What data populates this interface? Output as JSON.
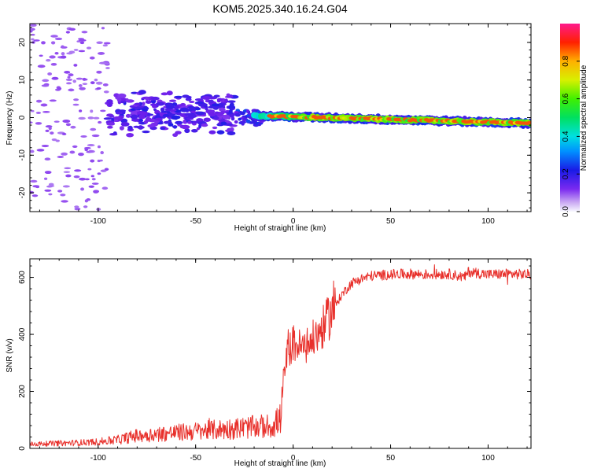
{
  "page_title": "KOM5.2025.340.16.24.G04",
  "colors": {
    "snr_line": "#e8302b",
    "axis": "#000000",
    "background": "#ffffff"
  },
  "chart_data": [
    {
      "type": "heatmap",
      "title": "KOM5.2025.340.16.24.G04",
      "xlabel": "Height of straight line (km)",
      "ylabel": "Frequency (Hz)",
      "xlim": [
        -135,
        122
      ],
      "ylim": [
        -25,
        25
      ],
      "xticks": [
        -100,
        -50,
        0,
        50,
        100
      ],
      "yticks": [
        -20,
        -10,
        0,
        10,
        20
      ],
      "colorbar": {
        "label": "Normalized spectral amplitude",
        "range": [
          0,
          1
        ],
        "ticks": [
          0.0,
          0.2,
          0.4,
          0.6,
          0.8
        ],
        "tick_labels": [
          "0.0",
          "0.2",
          "0.4",
          "0.6",
          "0.8"
        ],
        "colormap": "rainbow (violet to magenta)"
      },
      "features": [
        {
          "name": "noise scatter",
          "x_range": [
            -135,
            -95
          ],
          "freq_range": [
            -25,
            25
          ],
          "amplitude": 0.05
        },
        {
          "name": "onset cluster",
          "x_range": [
            -95,
            -30
          ],
          "freq_range": [
            -5,
            7
          ],
          "amplitude": 0.15
        },
        {
          "name": "carrier ridge",
          "x_range": [
            -20,
            122
          ],
          "freq_center_start": 0.5,
          "freq_center_end": -1.5,
          "amplitude": 0.95
        }
      ]
    },
    {
      "type": "line",
      "title": "",
      "xlabel": "Height of straight line (km)",
      "ylabel": "SNR (v/v)",
      "xlim": [
        -135,
        122
      ],
      "ylim": [
        0,
        665
      ],
      "xticks": [
        -100,
        -50,
        0,
        50,
        100
      ],
      "yticks": [
        0,
        200,
        400,
        600
      ],
      "series": [
        {
          "name": "SNR",
          "x": [
            -135,
            -120,
            -110,
            -100,
            -90,
            -80,
            -70,
            -60,
            -50,
            -40,
            -30,
            -20,
            -10,
            -6,
            -5,
            -3,
            0,
            5,
            10,
            15,
            20,
            25,
            30,
            35,
            40,
            50,
            60,
            70,
            80,
            88,
            90,
            100,
            110,
            122
          ],
          "values": [
            15,
            18,
            20,
            23,
            30,
            45,
            50,
            55,
            60,
            65,
            70,
            75,
            80,
            110,
            240,
            330,
            370,
            350,
            380,
            420,
            480,
            540,
            580,
            595,
            605,
            610,
            612,
            610,
            612,
            600,
            620,
            610,
            612,
            610
          ]
        }
      ]
    }
  ]
}
